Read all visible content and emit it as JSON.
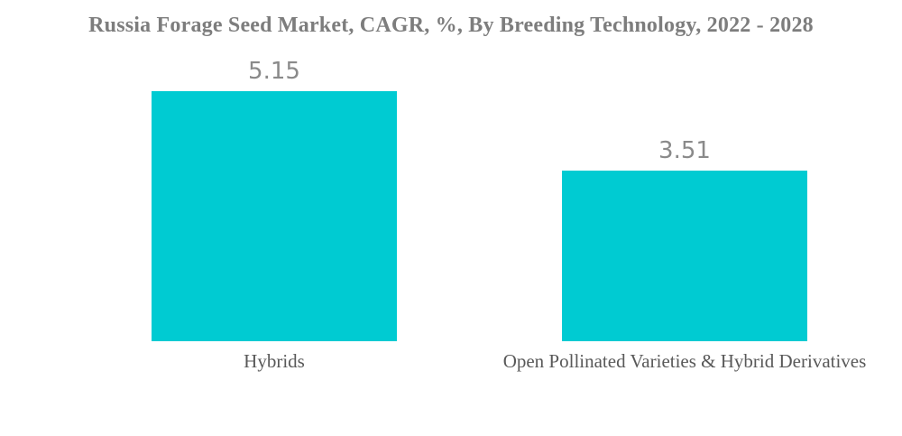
{
  "page": {
    "background_color": "#ffffff"
  },
  "chart_data": {
    "type": "bar",
    "title": "Russia Forage Seed Market, CAGR, %, By Breeding Technology, 2022 - 2028",
    "categories": [
      "Hybrids",
      "Open Pollinated Varieties & Hybrid Derivatives"
    ],
    "values": [
      5.15,
      3.51
    ],
    "value_labels": [
      "5.15",
      "3.51"
    ],
    "xlabel": "",
    "ylabel": "",
    "ylim": [
      0,
      7
    ],
    "grid": false,
    "legend": false,
    "axes_visible": false,
    "orientation": "vertical",
    "bar_color": "#00cbd2",
    "title_color": "#7d7d7d",
    "value_label_color": "#8a8a8a",
    "category_label_color": "#595959"
  }
}
